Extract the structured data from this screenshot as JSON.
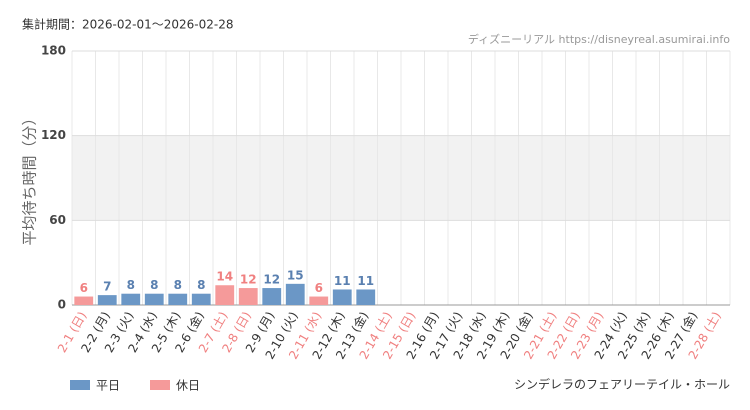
{
  "chart_data": {
    "type": "bar",
    "title": "集計期間：2026-02-01〜2026-02-28",
    "source": "ディズニーリアル https://disneyreal.asumirai.info",
    "y_label": "平均待ち時間（分）",
    "footer": "シンデレラのフェアリーテイル・ホール",
    "categories": [
      "2-1 (日)",
      "2-2 (月)",
      "2-3 (火)",
      "2-4 (水)",
      "2-5 (木)",
      "2-6 (金)",
      "2-7 (土)",
      "2-8 (日)",
      "2-9 (月)",
      "2-10 (火)",
      "2-11 (水)",
      "2-12 (木)",
      "2-13 (金)",
      "2-14 (土)",
      "2-15 (日)",
      "2-16 (月)",
      "2-17 (火)",
      "2-18 (水)",
      "2-19 (木)",
      "2-20 (金)",
      "2-21 (土)",
      "2-22 (日)",
      "2-23 (月)",
      "2-24 (火)",
      "2-25 (水)",
      "2-26 (木)",
      "2-27 (金)",
      "2-28 (土)"
    ],
    "label_colors": [
      "#f08080",
      "#333333",
      "#333333",
      "#333333",
      "#333333",
      "#333333",
      "#f08080",
      "#f08080",
      "#333333",
      "#333333",
      "#f08080",
      "#333333",
      "#333333",
      "#f08080",
      "#f08080",
      "#333333",
      "#333333",
      "#333333",
      "#333333",
      "#333333",
      "#f08080",
      "#f08080",
      "#f08080",
      "#333333",
      "#333333",
      "#333333",
      "#333333",
      "#f08080"
    ],
    "series": [
      {
        "name": "平日",
        "color": "#6b97c6",
        "label_color": "#5a80b0",
        "values": [
          null,
          7,
          8,
          8,
          8,
          8,
          null,
          null,
          12,
          15,
          null,
          11,
          11,
          null,
          null,
          null,
          null,
          null,
          null,
          null,
          null,
          null,
          null,
          null,
          null,
          null,
          null,
          null
        ]
      },
      {
        "name": "休日",
        "color": "#f59a9a",
        "label_color": "#f08080",
        "values": [
          6,
          null,
          null,
          null,
          null,
          null,
          14,
          12,
          null,
          null,
          6,
          null,
          null,
          null,
          null,
          null,
          null,
          null,
          null,
          null,
          null,
          null,
          null,
          null,
          null,
          null,
          null,
          null
        ]
      }
    ],
    "ylim": [
      0,
      180
    ],
    "yticks": [
      0,
      60,
      120,
      180
    ],
    "grid": true
  }
}
